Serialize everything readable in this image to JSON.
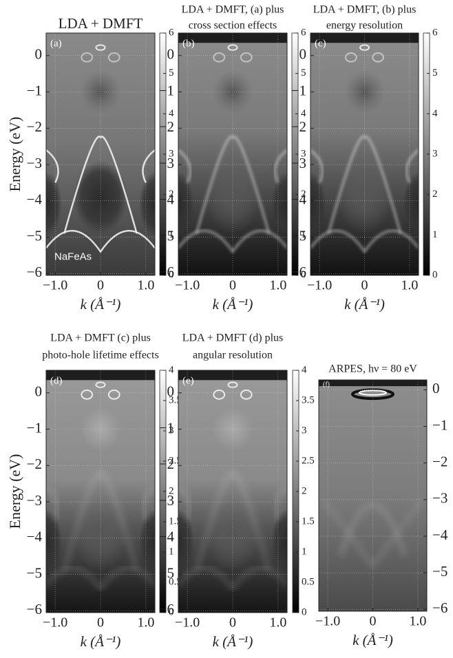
{
  "chart_data": [
    {
      "type": "heatmap",
      "panel": "(a)",
      "title": [
        "LDA + DMFT"
      ],
      "annotation": "NaFeAs",
      "xlabel": "k (Å⁻¹)",
      "ylabel": "Energy (eV)",
      "xlim": [
        -1.2,
        1.2
      ],
      "xticks": [
        {
          "value": -1,
          "label": "−1.0"
        },
        0,
        {
          "value": 1,
          "label": "1.0"
        }
      ],
      "ylim": [
        -6.05,
        0.62
      ],
      "yticks": [
        {
          "value": -6,
          "label": "−6"
        },
        {
          "value": -5,
          "label": "−5"
        },
        {
          "value": -4,
          "label": "−4"
        },
        {
          "value": -3,
          "label": "−3"
        },
        {
          "value": -2,
          "label": "−2"
        },
        {
          "value": -1,
          "label": "−1"
        },
        0
      ],
      "clim": [
        0,
        6
      ],
      "cticks": [
        0,
        1,
        2,
        3,
        4,
        5,
        6
      ],
      "grid": true
    },
    {
      "type": "heatmap",
      "panel": "(b)",
      "title": [
        "LDA + DMFT, (a) plus",
        "cross section effects"
      ],
      "xlabel": "k (Å⁻¹)",
      "xlim": [
        -1.2,
        1.2
      ],
      "xticks": [
        {
          "value": -1,
          "label": "−1.0"
        },
        0,
        {
          "value": 1,
          "label": "1.0"
        }
      ],
      "ylim": [
        -6.05,
        0.62
      ],
      "yticks": [
        {
          "value": -6,
          "label": "−6"
        },
        {
          "value": -5,
          "label": "−5"
        },
        {
          "value": -4,
          "label": "−4"
        },
        {
          "value": -3,
          "label": "−3"
        },
        {
          "value": -2,
          "label": "−2"
        },
        {
          "value": -1,
          "label": "−1"
        },
        0
      ],
      "clim": [
        0,
        6
      ],
      "cticks": [
        0,
        1,
        2,
        3,
        4,
        5,
        6
      ],
      "grid": true
    },
    {
      "type": "heatmap",
      "panel": "(c)",
      "title": [
        "LDA + DMFT, (b) plus",
        "energy resolution"
      ],
      "xlabel": "k (Å⁻¹)",
      "xlim": [
        -1.2,
        1.2
      ],
      "xticks": [
        {
          "value": -1,
          "label": "−1.0"
        },
        0,
        {
          "value": 1,
          "label": "1.0"
        }
      ],
      "ylim": [
        -6.05,
        0.62
      ],
      "yticks": [
        {
          "value": -6,
          "label": "−6"
        },
        {
          "value": -5,
          "label": "−5"
        },
        {
          "value": -4,
          "label": "−4"
        },
        {
          "value": -3,
          "label": "−3"
        },
        {
          "value": -2,
          "label": "−2"
        },
        {
          "value": -1,
          "label": "−1"
        },
        0
      ],
      "clim": [
        0,
        6
      ],
      "cticks": [
        0,
        1,
        2,
        3,
        4,
        5,
        6
      ],
      "grid": true
    },
    {
      "type": "heatmap",
      "panel": "(d)",
      "title": [
        "LDA + DMFT (c) plus",
        "photo-hole lifetime effects"
      ],
      "xlabel": "k (Å⁻¹)",
      "ylabel": "Energy (eV)",
      "xlim": [
        -1.2,
        1.2
      ],
      "xticks": [
        {
          "value": -1,
          "label": "−1.0"
        },
        0,
        {
          "value": 1,
          "label": "1.0"
        }
      ],
      "ylim": [
        -6.05,
        0.62
      ],
      "yticks": [
        {
          "value": -6,
          "label": "−6"
        },
        {
          "value": -5,
          "label": "−5"
        },
        {
          "value": -4,
          "label": "−4"
        },
        {
          "value": -3,
          "label": "−3"
        },
        {
          "value": -2,
          "label": "−2"
        },
        {
          "value": -1,
          "label": "−1"
        },
        0
      ],
      "clim": [
        0,
        4
      ],
      "cticks": [
        0,
        0.5,
        1,
        1.5,
        2,
        2.5,
        3,
        3.5,
        4
      ],
      "grid": true
    },
    {
      "type": "heatmap",
      "panel": "(e)",
      "title": [
        "LDA + DMFT (d) plus",
        "angular resolution"
      ],
      "xlabel": "k (Å⁻¹)",
      "xlim": [
        -1.2,
        1.2
      ],
      "xticks": [
        {
          "value": -1,
          "label": "−1.0"
        },
        0,
        {
          "value": 1,
          "label": "1.0"
        }
      ],
      "ylim": [
        -6.05,
        0.62
      ],
      "yticks": [
        {
          "value": -6,
          "label": "−6"
        },
        {
          "value": -5,
          "label": "−5"
        },
        {
          "value": -4,
          "label": "−4"
        },
        {
          "value": -3,
          "label": "−3"
        },
        {
          "value": -2,
          "label": "−2"
        },
        {
          "value": -1,
          "label": "−1"
        },
        0
      ],
      "clim": [
        0,
        4
      ],
      "cticks": [
        0,
        0.5,
        1,
        1.5,
        2,
        2.5,
        3,
        3.5,
        4
      ],
      "grid": true
    },
    {
      "type": "heatmap",
      "panel": "(f)",
      "title": [
        "ARPES, hν = 80 eV"
      ],
      "xlabel": "k (Å⁻¹)",
      "xlim": [
        -1.2,
        1.2
      ],
      "xticks": [
        {
          "value": -1,
          "label": "−1.0"
        },
        0,
        {
          "value": 1,
          "label": "1.0"
        }
      ],
      "ylim": [
        -6.05,
        0.27
      ],
      "yticks": [
        {
          "value": -6,
          "label": "−6"
        },
        {
          "value": -5,
          "label": "−5"
        },
        {
          "value": -4,
          "label": "−4"
        },
        {
          "value": -3,
          "label": "−3"
        },
        {
          "value": -2,
          "label": "−2"
        },
        {
          "value": -1,
          "label": "−1"
        },
        0
      ],
      "grid": true
    }
  ]
}
